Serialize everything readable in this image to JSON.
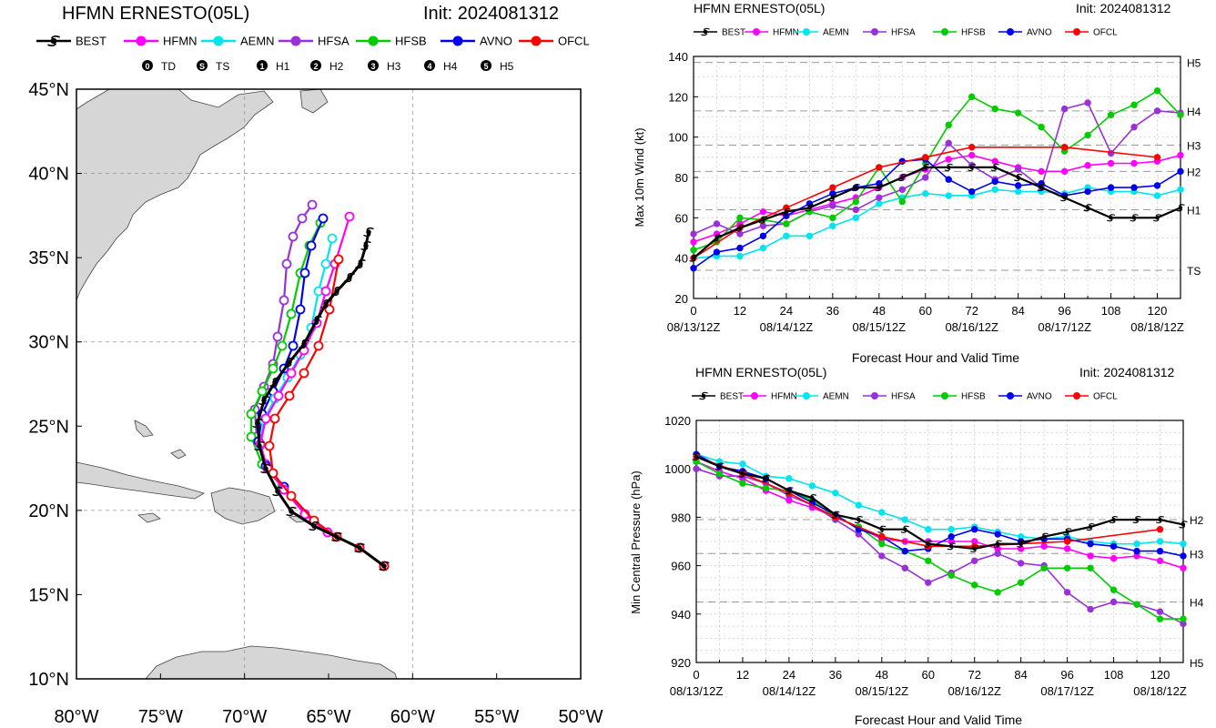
{
  "legend_items": [
    {
      "name": "BEST",
      "color": "#000000"
    },
    {
      "name": "HFMN",
      "color": "#ff00ff"
    },
    {
      "name": "AEMN",
      "color": "#00e5ee"
    },
    {
      "name": "HFSA",
      "color": "#9b30d9"
    },
    {
      "name": "HFSB",
      "color": "#00cc00"
    },
    {
      "name": "AVNO",
      "color": "#0000ee"
    },
    {
      "name": "OFCL",
      "color": "#ff0000"
    }
  ],
  "intensity_legend": [
    {
      "glyph": "0",
      "label": "TD"
    },
    {
      "glyph": "S",
      "label": "TS"
    },
    {
      "glyph": "1",
      "label": "H1"
    },
    {
      "glyph": "2",
      "label": "H2"
    },
    {
      "glyph": "3",
      "label": "H3"
    },
    {
      "glyph": "4",
      "label": "H4"
    },
    {
      "glyph": "5",
      "label": "H5"
    }
  ],
  "map": {
    "title": "HFMN ERNESTO(05L)",
    "init": "Init: 2024081312",
    "lat_labels": [
      "45°N",
      "40°N",
      "35°N",
      "30°N",
      "25°N",
      "20°N",
      "15°N",
      "10°N"
    ],
    "lon_labels": [
      "80°W",
      "75°W",
      "70°W",
      "65°W",
      "60°W",
      "55°W",
      "50°W"
    ]
  },
  "chart_data": [
    {
      "type": "line",
      "title": "HFMN ERNESTO(05L)",
      "init": "Init: 2024081312",
      "xlabel": "Forecast Hour and Valid Time",
      "ylabel": "Max 10m Wind (kt)",
      "xlim": [
        0,
        126
      ],
      "ylim": [
        20,
        140
      ],
      "xticks": [
        0,
        12,
        24,
        36,
        48,
        60,
        72,
        84,
        96,
        108,
        120
      ],
      "yticks": [
        20,
        40,
        60,
        80,
        100,
        120,
        140
      ],
      "date_ticks": [
        {
          "x": 0,
          "label": "08/13/12Z"
        },
        {
          "x": 24,
          "label": "08/14/12Z"
        },
        {
          "x": 48,
          "label": "08/15/12Z"
        },
        {
          "x": 72,
          "label": "08/16/12Z"
        },
        {
          "x": 96,
          "label": "08/17/12Z"
        },
        {
          "x": 120,
          "label": "08/18/12Z"
        }
      ],
      "category_lines": [
        {
          "y": 34,
          "label": "TS"
        },
        {
          "y": 64,
          "label": "H1"
        },
        {
          "y": 83,
          "label": "H2"
        },
        {
          "y": 96,
          "label": "H3"
        },
        {
          "y": 113,
          "label": "H4"
        },
        {
          "y": 137,
          "label": "H5"
        }
      ],
      "series": [
        {
          "name": "BEST",
          "x": [
            0,
            6,
            12,
            18,
            24,
            30,
            36,
            42,
            48,
            54,
            60,
            66,
            72,
            78,
            84,
            90,
            96,
            102,
            108,
            114,
            120,
            126
          ],
          "y": [
            40,
            50,
            55,
            59,
            63,
            65,
            70,
            75,
            75,
            80,
            85,
            85,
            85,
            85,
            80,
            75,
            70,
            65,
            60,
            60,
            60,
            65
          ]
        },
        {
          "name": "HFMN",
          "x": [
            0,
            6,
            12,
            18,
            24,
            30,
            36,
            42,
            48,
            54,
            60,
            66,
            72,
            78,
            84,
            90,
            96,
            102,
            108,
            114,
            120,
            126
          ],
          "y": [
            48,
            52,
            57,
            63,
            61,
            64,
            67,
            70,
            75,
            80,
            84,
            89,
            91,
            88,
            85,
            83,
            83,
            86,
            87,
            87,
            88,
            91
          ]
        },
        {
          "name": "AEMN",
          "x": [
            0,
            6,
            12,
            18,
            24,
            30,
            36,
            42,
            48,
            54,
            60,
            66,
            72,
            78,
            84,
            90,
            96,
            102,
            108,
            114,
            120,
            126
          ],
          "y": [
            40,
            41,
            41,
            45,
            51,
            51,
            56,
            60,
            67,
            70,
            72,
            71,
            71,
            74,
            73,
            73,
            72,
            75,
            73,
            73,
            71,
            74
          ]
        },
        {
          "name": "HFSA",
          "x": [
            0,
            6,
            12,
            18,
            24,
            30,
            36,
            42,
            48,
            54,
            60,
            66,
            72,
            78,
            84,
            90,
            96,
            102,
            108,
            114,
            120,
            126
          ],
          "y": [
            52,
            57,
            52,
            56,
            57,
            63,
            66,
            64,
            70,
            74,
            80,
            97,
            86,
            79,
            84,
            75,
            114,
            117,
            92,
            105,
            113,
            112
          ]
        },
        {
          "name": "HFSB",
          "x": [
            0,
            6,
            12,
            18,
            24,
            30,
            36,
            42,
            48,
            54,
            60,
            66,
            72,
            78,
            84,
            90,
            96,
            102,
            108,
            114,
            120,
            126
          ],
          "y": [
            44,
            48,
            60,
            59,
            57,
            63,
            60,
            68,
            85,
            68,
            87,
            106,
            120,
            114,
            112,
            105,
            93,
            101,
            111,
            116,
            123,
            111
          ]
        },
        {
          "name": "AVNO",
          "x": [
            0,
            6,
            12,
            18,
            24,
            30,
            36,
            42,
            48,
            54,
            60,
            66,
            72,
            78,
            84,
            90,
            96,
            102,
            108,
            114,
            120,
            126
          ],
          "y": [
            35,
            43,
            45,
            51,
            61,
            67,
            72,
            75,
            77,
            88,
            89,
            79,
            73,
            78,
            76,
            77,
            71,
            73,
            75,
            75,
            76,
            83
          ]
        },
        {
          "name": "OFCL",
          "x": [
            0,
            12,
            24,
            36,
            48,
            60,
            72,
            96,
            120
          ],
          "y": [
            40,
            55,
            65,
            75,
            85,
            90,
            95,
            95,
            90
          ]
        }
      ]
    },
    {
      "type": "line",
      "title": "HFMN ERNESTO(05L)",
      "init": "Init: 2024081312",
      "xlabel": "Forecast Hour and Valid Time",
      "ylabel": "Min Central Pressure (hPa)",
      "xlim": [
        0,
        126
      ],
      "ylim": [
        920,
        1020
      ],
      "xticks": [
        0,
        12,
        24,
        36,
        48,
        60,
        72,
        84,
        96,
        108,
        120
      ],
      "yticks": [
        920,
        940,
        960,
        980,
        1000,
        1020
      ],
      "date_ticks": [
        {
          "x": 0,
          "label": "08/13/12Z"
        },
        {
          "x": 24,
          "label": "08/14/12Z"
        },
        {
          "x": 48,
          "label": "08/15/12Z"
        },
        {
          "x": 72,
          "label": "08/16/12Z"
        },
        {
          "x": 96,
          "label": "08/17/12Z"
        },
        {
          "x": 120,
          "label": "08/18/12Z"
        }
      ],
      "category_lines": [
        {
          "y": 979,
          "label": "H2"
        },
        {
          "y": 965,
          "label": "H3"
        },
        {
          "y": 945,
          "label": "H4"
        },
        {
          "y": 920,
          "label": "H5"
        }
      ],
      "series": [
        {
          "name": "BEST",
          "x": [
            0,
            6,
            12,
            18,
            24,
            30,
            36,
            42,
            48,
            54,
            60,
            66,
            72,
            78,
            84,
            90,
            96,
            102,
            108,
            114,
            120,
            126
          ],
          "y": [
            1005,
            1001,
            998,
            996,
            991,
            988,
            981,
            979,
            975,
            975,
            969,
            968,
            967,
            969,
            969,
            972,
            974,
            976,
            979,
            979,
            979,
            977
          ]
        },
        {
          "name": "HFMN",
          "x": [
            0,
            6,
            12,
            18,
            24,
            30,
            36,
            42,
            48,
            54,
            60,
            66,
            72,
            78,
            84,
            90,
            96,
            102,
            108,
            114,
            120,
            126
          ],
          "y": [
            1003,
            999,
            996,
            991,
            987,
            984,
            980,
            976,
            971,
            970,
            970,
            970,
            970,
            967,
            967,
            968,
            967,
            964,
            963,
            964,
            962,
            959
          ]
        },
        {
          "name": "AEMN",
          "x": [
            0,
            6,
            12,
            18,
            24,
            30,
            36,
            42,
            48,
            54,
            60,
            66,
            72,
            78,
            84,
            90,
            96,
            102,
            108,
            114,
            120,
            126
          ],
          "y": [
            1006,
            1003,
            1002,
            997,
            996,
            993,
            990,
            985,
            982,
            979,
            975,
            975,
            976,
            974,
            972,
            971,
            972,
            970,
            969,
            969,
            970,
            969
          ]
        },
        {
          "name": "HFSA",
          "x": [
            0,
            6,
            12,
            18,
            24,
            30,
            36,
            42,
            48,
            54,
            60,
            66,
            72,
            78,
            84,
            90,
            96,
            102,
            108,
            114,
            120,
            126
          ],
          "y": [
            1000,
            997,
            997,
            994,
            989,
            985,
            979,
            973,
            964,
            959,
            953,
            957,
            962,
            965,
            961,
            960,
            949,
            942,
            945,
            944,
            941,
            936
          ]
        },
        {
          "name": "HFSB",
          "x": [
            0,
            6,
            12,
            18,
            24,
            30,
            36,
            42,
            48,
            54,
            60,
            66,
            72,
            78,
            84,
            90,
            96,
            102,
            108,
            114,
            120,
            126
          ],
          "y": [
            1003,
            998,
            994,
            992,
            991,
            987,
            980,
            976,
            969,
            966,
            962,
            956,
            952,
            949,
            953,
            959,
            959,
            959,
            950,
            944,
            938,
            938
          ]
        },
        {
          "name": "AVNO",
          "x": [
            0,
            6,
            12,
            18,
            24,
            30,
            36,
            42,
            48,
            54,
            60,
            66,
            72,
            78,
            84,
            90,
            96,
            102,
            108,
            114,
            120,
            126
          ],
          "y": [
            1006,
            1001,
            999,
            996,
            991,
            986,
            981,
            975,
            972,
            966,
            967,
            972,
            975,
            973,
            970,
            971,
            971,
            969,
            968,
            966,
            966,
            964
          ]
        },
        {
          "name": "OFCL",
          "x": [
            0,
            12,
            24,
            36,
            48,
            60,
            72,
            96,
            120
          ],
          "y": [
            1005,
            998,
            990,
            980,
            972,
            968,
            968,
            970,
            975
          ]
        }
      ]
    }
  ]
}
